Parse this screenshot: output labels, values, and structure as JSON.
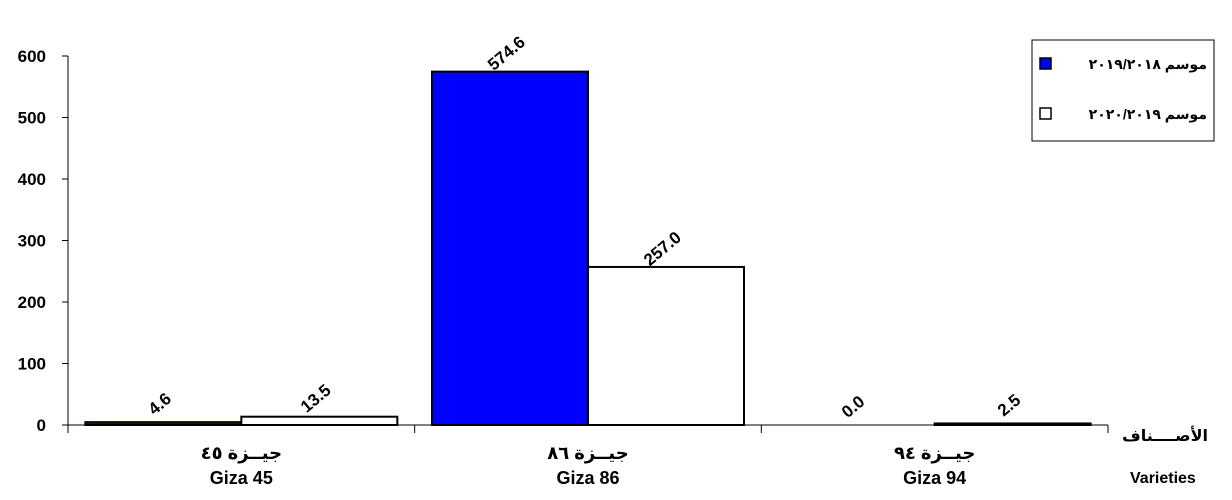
{
  "chart_data": {
    "type": "bar",
    "categories": [
      {
        "arabic": "جيــزة ٤٥",
        "english": "Giza 45"
      },
      {
        "arabic": "جيــزة ٨٦",
        "english": "Giza 86"
      },
      {
        "arabic": "جيــزة ٩٤",
        "english": "Giza 94"
      }
    ],
    "series": [
      {
        "name": "موسم ٢٠١٩/٢٠١٨",
        "values": [
          4.6,
          574.6,
          0.0
        ],
        "labels": [
          "4.6",
          "574.6",
          "0.0"
        ],
        "color": "#0000ff"
      },
      {
        "name": "موسم ٢٠٢٠/٢٠١٩",
        "values": [
          13.5,
          257.0,
          2.5
        ],
        "labels": [
          "13.5",
          "257.0",
          "2.5"
        ],
        "color": "#ffffff"
      }
    ],
    "xlabel_arabic": "الأصــــناف",
    "xlabel_english": "Varieties",
    "ylabel": "",
    "ylim": [
      0,
      600
    ],
    "yticks": [
      "0",
      "100",
      "200",
      "300",
      "400",
      "500",
      "600"
    ],
    "grid": false,
    "legend_position": "top-right"
  }
}
